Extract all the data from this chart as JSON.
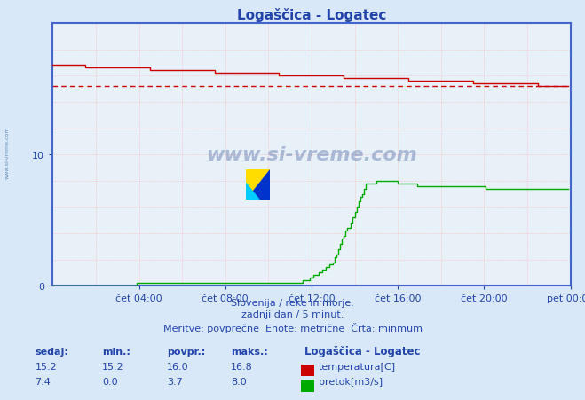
{
  "title": "Logaščica - Logatec",
  "bg_color": "#d8e8f8",
  "plot_bg_color": "#e8f0f8",
  "grid_color": "#ffb0b0",
  "axis_color": "#4466cc",
  "title_color": "#2244aa",
  "text_color": "#2244aa",
  "xlim": [
    0,
    288
  ],
  "ylim": [
    0,
    20
  ],
  "yticks": [
    0,
    10
  ],
  "xtick_positions": [
    48,
    96,
    144,
    192,
    240,
    288
  ],
  "xtick_labels": [
    "čet 04:00",
    "čet 08:00",
    "čet 12:00",
    "čet 16:00",
    "čet 20:00",
    "pet 00:00"
  ],
  "temp_color": "#cc0000",
  "flow_color": "#00aa00",
  "temp_min": 15.2,
  "temp_max": 16.8,
  "flow_max": 8.0,
  "footer_line1": "Slovenija / reke in morje.",
  "footer_line2": "zadnji dan / 5 minut.",
  "footer_line3": "Meritve: povprečne  Enote: metrične  Črta: minmum",
  "legend_title": "Logaščica - Logatec",
  "sedaj_label": "sedaj:",
  "min_label": "min.:",
  "povpr_label": "povpr.:",
  "maks_label": "maks.:",
  "temp_sedaj": 15.2,
  "temp_min_val": 15.2,
  "temp_povpr": 16.0,
  "temp_maks": 16.8,
  "flow_sedaj": 7.4,
  "flow_min_val": 0.0,
  "flow_povpr": 3.7,
  "flow_maks": 8.0,
  "temp_label": "temperatura[C]",
  "flow_label": "pretok[m3/s]",
  "watermark": "www.si-vreme.com",
  "left_watermark": "www.si-vreme.com"
}
